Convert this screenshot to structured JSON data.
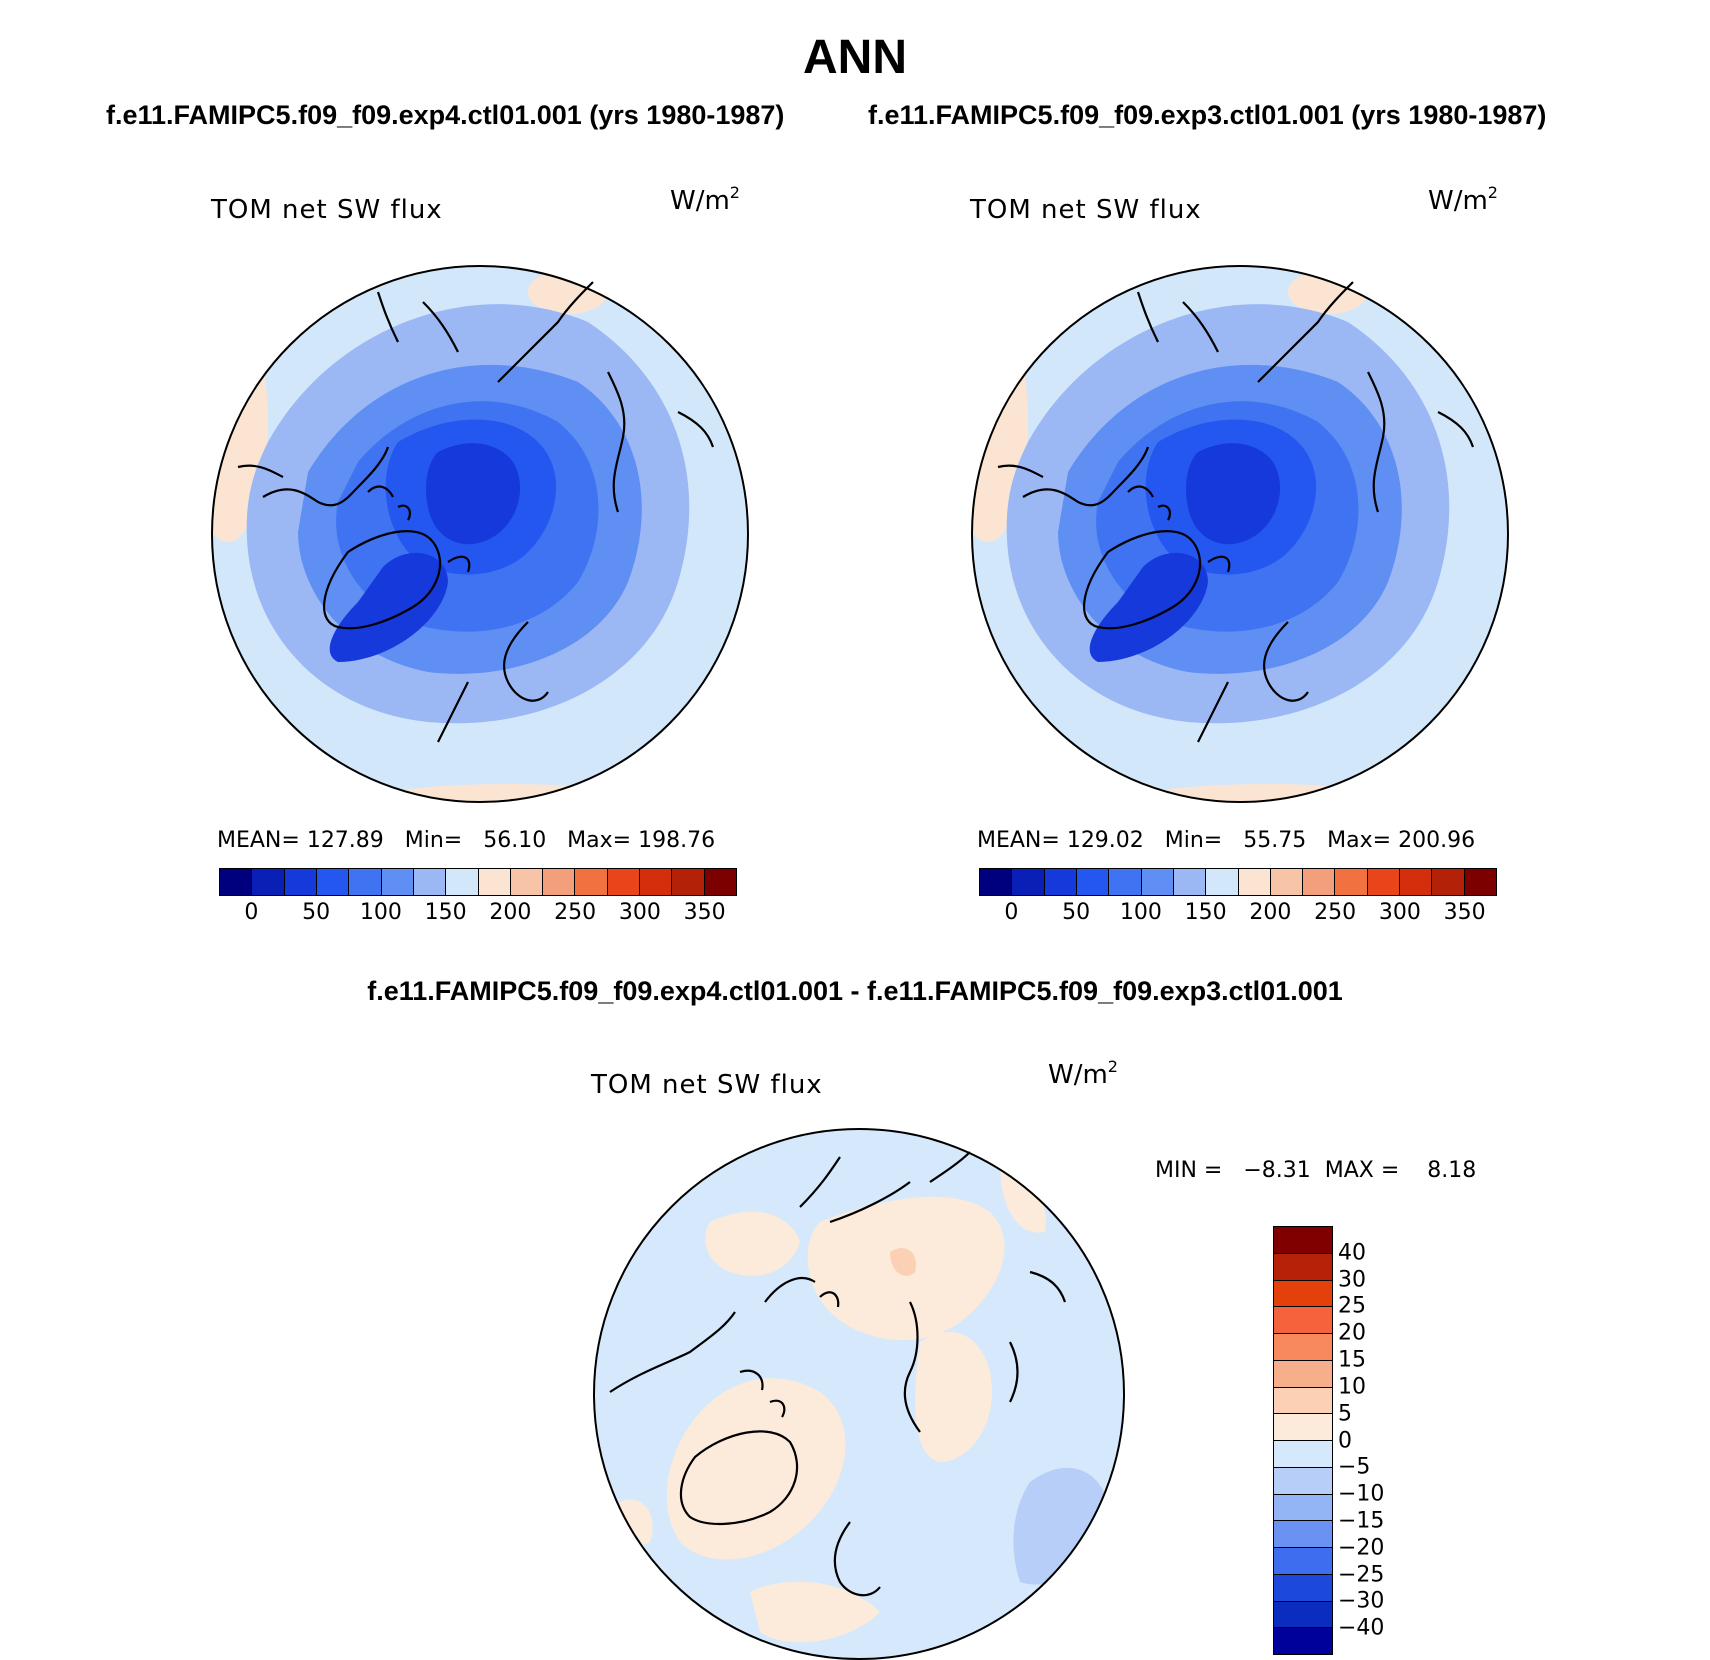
{
  "title": "ANN",
  "subtitles": {
    "left": "f.e11.FAMIPC5.f09_f09.exp4.ctl01.001 (yrs 1980-1987)",
    "right": "f.e11.FAMIPC5.f09_f09.exp3.ctl01.001 (yrs 1980-1987)",
    "diff": "f.e11.FAMIPC5.f09_f09.exp4.ctl01.001 - f.e11.FAMIPC5.f09_f09.exp3.ctl01.001"
  },
  "panels": [
    {
      "variable": "TOM net SW flux",
      "units_base": "W/m",
      "units_exp": "2",
      "stats": "MEAN= 127.89   Min=   56.10   Max= 198.76",
      "cbar_labels": [
        "0",
        "50",
        "100",
        "150",
        "200",
        "250",
        "300",
        "350"
      ]
    },
    {
      "variable": "TOM net SW flux",
      "units_base": "W/m",
      "units_exp": "2",
      "stats": "MEAN= 129.02   Min=   55.75   Max= 200.96",
      "cbar_labels": [
        "0",
        "50",
        "100",
        "150",
        "200",
        "250",
        "300",
        "350"
      ]
    }
  ],
  "diff_panel": {
    "variable": "TOM net SW flux",
    "units_base": "W/m",
    "units_exp": "2",
    "stats": "MIN =   −8.31  MAX =    8.18",
    "cbar_labels": [
      "40",
      "30",
      "25",
      "20",
      "15",
      "10",
      "5",
      "0",
      "−5",
      "−10",
      "−15",
      "−20",
      "−25",
      "−30",
      "−40"
    ]
  },
  "colors": {
    "abs_scale": [
      "#00007f",
      "#0a1fb5",
      "#1539db",
      "#2456f0",
      "#3f73f2",
      "#5f8ff2",
      "#9bb8f5",
      "#d3e7fa",
      "#fbe5d2",
      "#f7c4a7",
      "#f49f7c",
      "#f17140",
      "#e8461a",
      "#d42f0c",
      "#b22108",
      "#7d0000"
    ],
    "diff_scale": [
      "#800000",
      "#b52208",
      "#e3400c",
      "#f4633c",
      "#f7895d",
      "#f7ae8a",
      "#fbd0b4",
      "#fcebdb",
      "#d6e8fb",
      "#b7cff8",
      "#93b4f5",
      "#6a92f2",
      "#3f6df0",
      "#1c48dc",
      "#0a2cbf",
      "#00009a"
    ]
  }
}
